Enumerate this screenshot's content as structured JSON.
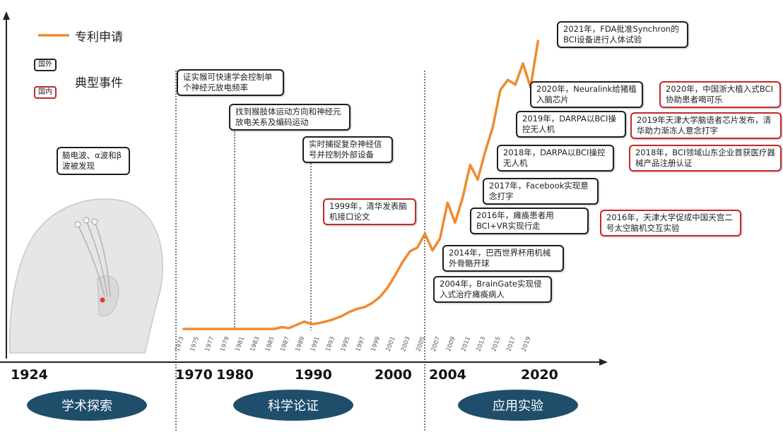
{
  "legend": {
    "series_label": "专利申请",
    "events_label": "典型事件",
    "foreign": "国外",
    "domestic": "国内",
    "series_color": "#f08a30",
    "foreign_color": "#1f1f1f",
    "domestic_color": "#c62828"
  },
  "eras": [
    "1924",
    "1970",
    "1980",
    "1990",
    "2000",
    "2004",
    "2020"
  ],
  "phases": [
    "学术探索",
    "科学论证",
    "应用实验"
  ],
  "brain_note": "脑电波、α波和β波被发现",
  "events": [
    {
      "text": "证实猴可快速学会控制单个神经元放电频率",
      "origin": "foreign"
    },
    {
      "text": "找到猴肢体运动方向和神经元放电关系及编码运动",
      "origin": "foreign"
    },
    {
      "text": "实时捕捉复杂神经信号并控制外部设备",
      "origin": "foreign"
    },
    {
      "text": "1999年，清华发表脑机接口论文",
      "origin": "domestic"
    },
    {
      "text": "2004年，BrainGate实现侵入式治疗瘫痪病人",
      "origin": "foreign"
    },
    {
      "text": "2014年，巴西世界杯用机械外骨骼开球",
      "origin": "foreign"
    },
    {
      "text": "2016年，瘫痪患者用BCI+VR实现行走",
      "origin": "foreign"
    },
    {
      "text": "2016年，天津大学促成中国天宫二号太空脑机交互实验",
      "origin": "domestic"
    },
    {
      "text": "2017年，Facebook实现意念打字",
      "origin": "foreign"
    },
    {
      "text": "2018年，DARPA以BCI操控无人机",
      "origin": "foreign"
    },
    {
      "text": "2018年，BCI领域山东企业首获医疗器械产品注册认证",
      "origin": "domestic"
    },
    {
      "text": "2019年，DARPA以BCI操控无人机",
      "origin": "foreign"
    },
    {
      "text": "2019年天津大学脑语者芯片发布，清华助力渐冻人意念打字",
      "origin": "domestic"
    },
    {
      "text": "2020年，Neuralink给猪植入脑芯片",
      "origin": "foreign"
    },
    {
      "text": "2020年，中国浙大植入式BCI协助患者喝可乐",
      "origin": "domestic"
    },
    {
      "text": "2021年，FDA批准Synchron的BCI设备进行人体试验",
      "origin": "foreign"
    }
  ],
  "chart_data": {
    "type": "line",
    "title": "",
    "xlabel": "",
    "ylabel": "",
    "grid": false,
    "legend_position": "top-left",
    "x_tick_labels": [
      "1973",
      "1975",
      "1977",
      "1979",
      "1981",
      "1983",
      "1985",
      "1987",
      "1989",
      "1991",
      "1993",
      "1995",
      "1997",
      "1999",
      "2001",
      "2003",
      "2005",
      "2007",
      "2009",
      "2011",
      "2013",
      "2015",
      "2017",
      "2019"
    ],
    "xlim": [
      1973,
      2021
    ],
    "ylim": [
      0,
      100
    ],
    "series": [
      {
        "name": "专利申请",
        "x": [
          1973,
          1975,
          1977,
          1979,
          1981,
          1983,
          1985,
          1986,
          1987,
          1988,
          1989,
          1990,
          1991,
          1992,
          1993,
          1994,
          1995,
          1996,
          1997,
          1998,
          1999,
          2000,
          2001,
          2002,
          2003,
          2004,
          2005,
          2006,
          2007,
          2008,
          2009,
          2010,
          2011,
          2012,
          2013,
          2014,
          2015,
          2016,
          2017,
          2018,
          2019,
          2020
        ],
        "y": [
          0,
          0,
          0,
          0,
          0,
          0,
          0,
          0.6,
          0.3,
          1.4,
          2.5,
          1.6,
          2,
          2.6,
          3.4,
          4.4,
          5.8,
          6.8,
          7.4,
          8.8,
          10.8,
          13.8,
          18,
          22.5,
          26.3,
          27.6,
          32.3,
          26.6,
          30.7,
          42.8,
          36,
          44.5,
          55.6,
          50.6,
          60.2,
          68.4,
          81,
          84.4,
          82.8,
          90,
          81.9,
          97.6
        ]
      }
    ]
  }
}
